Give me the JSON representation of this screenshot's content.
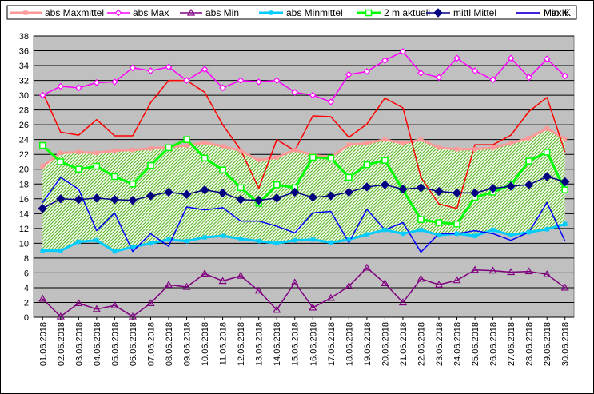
{
  "chart_data": {
    "type": "line",
    "ylim": [
      0,
      38
    ],
    "yticks": [
      0,
      2,
      4,
      6,
      8,
      10,
      12,
      14,
      16,
      18,
      20,
      22,
      24,
      26,
      28,
      30,
      32,
      34,
      36,
      38
    ],
    "grid": true,
    "legend_position": "top",
    "plot_bg": "#c0c0c0",
    "categories": [
      "01.06.2018",
      "02.06.2018",
      "03.06.2018",
      "04.06.2018",
      "05.06.2018",
      "06.06.2018",
      "07.06.2018",
      "08.06.2018",
      "09.06.2018",
      "10.06.2018",
      "11.06.2018",
      "12.06.2018",
      "13.06.2018",
      "14.06.2018",
      "15.06.2018",
      "16.06.2018",
      "17.06.2018",
      "18.06.2018",
      "19.06.2018",
      "20.06.2018",
      "21.06.2018",
      "22.06.2018",
      "23.06.2018",
      "24.06.2018",
      "25.06.2018",
      "26.06.2018",
      "27.06.2018",
      "28.06.2018",
      "29.06.2018",
      "30.06.2018"
    ],
    "series": [
      {
        "name": "abs Maxmittel",
        "color": "#ff9999",
        "marker": "star",
        "width": 3,
        "values": [
          20.4,
          22.2,
          22.3,
          22.2,
          22.5,
          22.6,
          22.8,
          23.0,
          23.2,
          23.6,
          23.1,
          22.5,
          21.2,
          21.6,
          22.6,
          21.9,
          21.6,
          23.3,
          23.5,
          24.0,
          23.5,
          24.0,
          22.9,
          22.7,
          22.7,
          22.9,
          23.5,
          24.2,
          25.5,
          24.1
        ]
      },
      {
        "name": "abs Max",
        "color": "#ff00ff",
        "marker": "diamond-open",
        "width": 1.5,
        "values": [
          30.0,
          31.2,
          31.0,
          31.7,
          31.8,
          33.7,
          33.3,
          33.8,
          32.0,
          33.5,
          31.0,
          32.0,
          31.8,
          32.0,
          30.4,
          30.0,
          29.1,
          32.8,
          33.2,
          34.7,
          35.9,
          33.0,
          32.4,
          35.0,
          33.3,
          32.1,
          35.0,
          32.4,
          34.9,
          32.6
        ]
      },
      {
        "name": "abs Min",
        "color": "#800080",
        "marker": "triangle-open",
        "width": 1.5,
        "values": [
          2.5,
          0.1,
          1.9,
          1.1,
          1.6,
          0.1,
          1.9,
          4.4,
          4.1,
          5.9,
          4.9,
          5.6,
          3.6,
          1.0,
          4.7,
          1.3,
          2.6,
          4.2,
          6.7,
          4.6,
          2.0,
          5.2,
          4.4,
          5.0,
          6.4,
          6.3,
          6.1,
          6.2,
          5.8,
          4.0
        ]
      },
      {
        "name": "abs Minmittel",
        "color": "#00ccff",
        "marker": "star",
        "width": 3,
        "values": [
          9.0,
          9.0,
          10.2,
          10.4,
          8.9,
          9.5,
          10.0,
          10.5,
          10.3,
          10.8,
          11.0,
          10.6,
          10.3,
          10.0,
          10.4,
          10.5,
          10.1,
          10.5,
          11.2,
          11.8,
          11.3,
          11.8,
          11.1,
          11.3,
          11.0,
          11.8,
          11.1,
          11.5,
          11.9,
          12.6
        ]
      },
      {
        "name": "2 m aktuell",
        "color": "#00ff00",
        "marker": "square-open",
        "width": 3,
        "values": [
          23.2,
          21.0,
          20.0,
          20.4,
          19.0,
          18.0,
          20.5,
          22.9,
          24.0,
          21.5,
          19.9,
          17.5,
          15.4,
          17.9,
          17.5,
          21.6,
          21.5,
          18.9,
          20.6,
          21.2,
          17.2,
          13.2,
          12.8,
          12.6,
          16.2,
          16.9,
          17.9,
          21.1,
          22.3,
          17.2
        ]
      },
      {
        "name": "mittl Mittel",
        "color": "#000080",
        "marker": "diamond",
        "width": 1.5,
        "values": [
          14.7,
          16.0,
          15.9,
          16.1,
          15.9,
          15.8,
          16.4,
          16.9,
          16.6,
          17.2,
          16.8,
          15.9,
          15.8,
          16.1,
          16.9,
          16.2,
          16.4,
          16.9,
          17.6,
          17.9,
          17.3,
          17.5,
          17.0,
          16.8,
          16.8,
          17.4,
          17.7,
          17.9,
          19.0,
          18.3
        ]
      },
      {
        "name": "Max K",
        "color": "#ff0000",
        "marker": "none",
        "width": 1.5,
        "values": [
          30.4,
          25.0,
          24.6,
          26.7,
          24.5,
          24.5,
          29.0,
          32.0,
          32.0,
          30.4,
          26.0,
          22.6,
          17.4,
          24.0,
          22.5,
          27.2,
          27.1,
          24.3,
          26.1,
          29.6,
          28.3,
          18.9,
          15.3,
          14.7,
          23.3,
          23.3,
          24.6,
          27.8,
          29.7,
          22.3
        ]
      },
      {
        "name": "Min K",
        "color": "#0000ff",
        "marker": "none",
        "width": 1.5,
        "values": [
          15.5,
          18.9,
          17.3,
          11.7,
          14.1,
          8.9,
          11.3,
          9.6,
          14.9,
          14.5,
          14.8,
          13.0,
          13.0,
          12.3,
          11.4,
          14.1,
          14.3,
          10.1,
          14.6,
          11.8,
          12.8,
          8.8,
          11.3,
          11.3,
          11.7,
          11.3,
          10.4,
          11.5,
          15.5,
          10.3
        ]
      }
    ]
  }
}
